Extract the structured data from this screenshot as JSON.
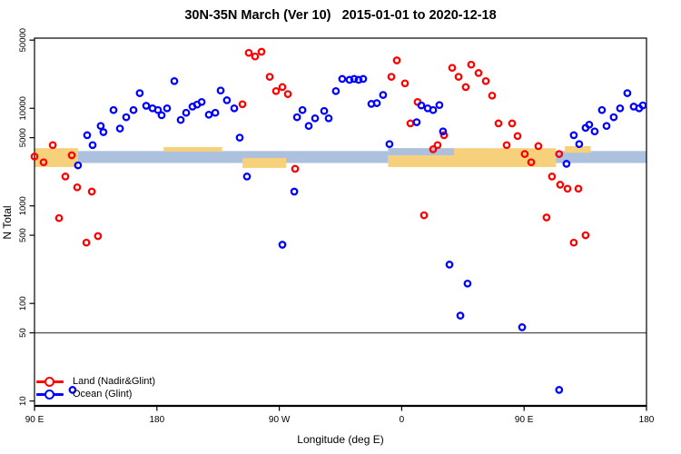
{
  "title": "30N-35N March (Ver 10)   2015-01-01 to 2020-12-18",
  "colors": {
    "land": "#ff0000",
    "ocean": "#0000ff",
    "band_land": "#f7d07b",
    "band_ocean": "#acc1dd",
    "ref_line": "#555555",
    "axis": "#000000"
  },
  "legend": {
    "items": [
      {
        "label": "Land (Nadir&Glint)",
        "color": "land"
      },
      {
        "label": "Ocean (Glint)",
        "color": "ocean"
      }
    ]
  },
  "chart_data": {
    "type": "scatter",
    "title": "30N-35N March (Ver 10)   2015-01-01 to 2020-12-18",
    "xlabel": "Longitude (deg E)",
    "ylabel": "N Total",
    "x_axis_note": "Longitude axis spans 450 deg starting at 90E and wrapping past 180/-180 and 0; the 90E-180 sector is shown twice. Point x = degrees east of the left edge (left edge = 90E).",
    "x_axis_deg_span": 450,
    "x_ticks": [
      {
        "pos": 0,
        "label": "90 E"
      },
      {
        "pos": 90,
        "label": "180"
      },
      {
        "pos": 180,
        "label": "90 W"
      },
      {
        "pos": 270,
        "label": "0"
      },
      {
        "pos": 360,
        "label": "90 E"
      },
      {
        "pos": 450,
        "label": "180"
      }
    ],
    "y_scale": "log",
    "y_ticks": [
      10,
      50,
      100,
      500,
      1000,
      5000,
      10000,
      50000
    ],
    "ylim": [
      9,
      52000
    ],
    "grid": false,
    "legend_position": "bottom-left inside plot",
    "ref_line_y": 50,
    "band": {
      "description": "thick horizontal surface-type band near N=3000: gold = land longitudes, light blue = ocean longitudes",
      "center_value": 3100,
      "segments": [
        {
          "from": 0,
          "to": 32,
          "type": "land",
          "n": [
            2500,
            3900
          ]
        },
        {
          "from": 32,
          "to": 260,
          "type": "ocean",
          "n": [
            2750,
            3650
          ]
        },
        {
          "from": 260,
          "to": 383.5,
          "type": "land",
          "n": [
            2500,
            3900
          ]
        },
        {
          "from": 383.5,
          "to": 450,
          "type": "ocean",
          "n": [
            2750,
            3650
          ]
        },
        {
          "from": 95,
          "to": 138,
          "type": "land",
          "n": [
            3600,
            4000
          ]
        },
        {
          "from": 153,
          "to": 185,
          "type": "land",
          "n": [
            2450,
            3100
          ]
        },
        {
          "from": 260,
          "to": 308.5,
          "type": "ocean",
          "n": [
            3300,
            3900
          ]
        },
        {
          "from": 390,
          "to": 409,
          "type": "land",
          "n": [
            3500,
            4100
          ]
        }
      ]
    },
    "series": [
      {
        "name": "Land (Nadir&Glint)",
        "color": "land",
        "points": [
          [
            0,
            3200
          ],
          [
            6.7,
            2800
          ],
          [
            13.4,
            4200
          ],
          [
            18,
            750
          ],
          [
            22.7,
            2000
          ],
          [
            27.4,
            3300
          ],
          [
            31.4,
            1550
          ],
          [
            38.1,
            420
          ],
          [
            42.1,
            1400
          ],
          [
            46.7,
            490
          ],
          [
            152.9,
            11000
          ],
          [
            157.6,
            37000
          ],
          [
            162.2,
            34000
          ],
          [
            166.9,
            38000
          ],
          [
            172.9,
            21000
          ],
          [
            177.6,
            15000
          ],
          [
            182.3,
            16500
          ],
          [
            186.3,
            14000
          ],
          [
            191.6,
            2400
          ],
          [
            262.4,
            21000
          ],
          [
            266.4,
            31000
          ],
          [
            272.4,
            18000
          ],
          [
            276.4,
            7000
          ],
          [
            281.7,
            11600
          ],
          [
            286.4,
            800
          ],
          [
            293.1,
            3800
          ],
          [
            296.4,
            4200
          ],
          [
            301.1,
            5300
          ],
          [
            307.1,
            26000
          ],
          [
            311.8,
            21000
          ],
          [
            317.1,
            16500
          ],
          [
            321.1,
            28000
          ],
          [
            326.5,
            23000
          ],
          [
            331.8,
            19000
          ],
          [
            336.5,
            13500
          ],
          [
            341.2,
            7000
          ],
          [
            347.2,
            4200
          ],
          [
            351.2,
            7000
          ],
          [
            355.2,
            5200
          ],
          [
            360.5,
            3400
          ],
          [
            365.2,
            2800
          ],
          [
            370.5,
            4100
          ],
          [
            376.5,
            760
          ],
          [
            380.5,
            2000
          ],
          [
            385.8,
            3400
          ],
          [
            386.5,
            1650
          ],
          [
            391.9,
            1500
          ],
          [
            396.5,
            420
          ],
          [
            399.9,
            1500
          ],
          [
            405.2,
            500
          ]
        ]
      },
      {
        "name": "Ocean (Glint)",
        "color": "ocean",
        "points": [
          [
            28,
            13
          ],
          [
            32,
            2600
          ],
          [
            38.7,
            5300
          ],
          [
            42.7,
            4200
          ],
          [
            48.7,
            6600
          ],
          [
            50.7,
            5700
          ],
          [
            58.1,
            9600
          ],
          [
            62.8,
            6200
          ],
          [
            67.4,
            8100
          ],
          [
            72.8,
            9600
          ],
          [
            77.4,
            14300
          ],
          [
            82.1,
            10600
          ],
          [
            86.8,
            10000
          ],
          [
            90.8,
            9600
          ],
          [
            93.5,
            8500
          ],
          [
            97.5,
            10000
          ],
          [
            102.8,
            19000
          ],
          [
            107.5,
            7600
          ],
          [
            111.5,
            9000
          ],
          [
            116.2,
            10400
          ],
          [
            119.5,
            10900
          ],
          [
            122.9,
            11600
          ],
          [
            128.2,
            8600
          ],
          [
            132.9,
            9000
          ],
          [
            136.9,
            15200
          ],
          [
            141.5,
            12100
          ],
          [
            146.9,
            10000
          ],
          [
            150.9,
            5000
          ],
          [
            156.2,
            2000
          ],
          [
            182.3,
            400
          ],
          [
            191,
            1400
          ],
          [
            193,
            8100
          ],
          [
            197,
            9600
          ],
          [
            201.6,
            6600
          ],
          [
            206.3,
            7900
          ],
          [
            213,
            9400
          ],
          [
            216.3,
            7900
          ],
          [
            221.6,
            15000
          ],
          [
            226.3,
            20000
          ],
          [
            231.6,
            19600
          ],
          [
            235,
            20000
          ],
          [
            238.3,
            19600
          ],
          [
            241.7,
            20000
          ],
          [
            247.7,
            11100
          ],
          [
            251.7,
            11300
          ],
          [
            256.3,
            13700
          ],
          [
            261,
            4300
          ],
          [
            281,
            7200
          ],
          [
            284.4,
            10700
          ],
          [
            289.1,
            10000
          ],
          [
            293.1,
            9600
          ],
          [
            297.7,
            10800
          ],
          [
            300.4,
            5800
          ],
          [
            305.1,
            250
          ],
          [
            313.1,
            75
          ],
          [
            318.4,
            160
          ],
          [
            358.5,
            57
          ],
          [
            385.8,
            13
          ],
          [
            391.2,
            2700
          ],
          [
            396.5,
            5300
          ],
          [
            400.5,
            4300
          ],
          [
            405.2,
            6300
          ],
          [
            407.9,
            6800
          ],
          [
            411.9,
            5800
          ],
          [
            417.2,
            9600
          ],
          [
            420.6,
            6600
          ],
          [
            425.9,
            8100
          ],
          [
            430.6,
            10000
          ],
          [
            435.9,
            14300
          ],
          [
            440.6,
            10400
          ],
          [
            444.6,
            10000
          ],
          [
            447.3,
            10700
          ]
        ]
      }
    ]
  }
}
